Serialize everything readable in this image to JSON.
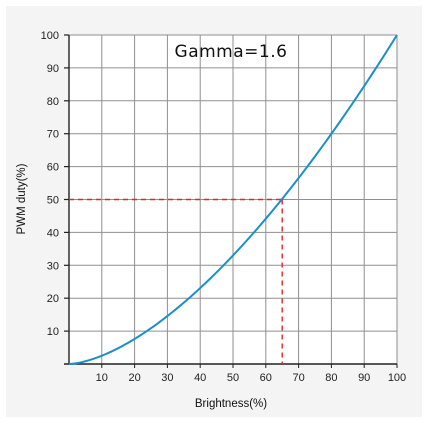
{
  "chart_data": {
    "type": "line",
    "title": "Gamma=1.6",
    "xlabel": "Brightness(%)",
    "ylabel": "PWM duty(%)",
    "xlim": [
      0,
      100
    ],
    "ylim": [
      0,
      100
    ],
    "x_ticks": [
      10,
      20,
      30,
      40,
      50,
      60,
      70,
      80,
      90,
      100
    ],
    "y_ticks": [
      10,
      20,
      30,
      40,
      50,
      60,
      70,
      80,
      90,
      100
    ],
    "grid": true,
    "gamma": 1.6,
    "series": [
      {
        "color": "#1a8fc9",
        "x": [
          0,
          5,
          10,
          15,
          20,
          25,
          30,
          35,
          40,
          45,
          50,
          55,
          60,
          65,
          70,
          75,
          80,
          85,
          90,
          95,
          100
        ],
        "y": [
          0,
          0.8,
          2.5,
          4.8,
          7.6,
          10.9,
          14.5,
          18.6,
          23.1,
          27.9,
          33.0,
          38.4,
          44.1,
          50.2,
          56.5,
          63.1,
          70.0,
          77.1,
          84.5,
          92.1,
          100.0
        ]
      }
    ],
    "annotation": {
      "x": 65,
      "y": 50,
      "color": "#e0262a",
      "style": "dashed"
    }
  }
}
